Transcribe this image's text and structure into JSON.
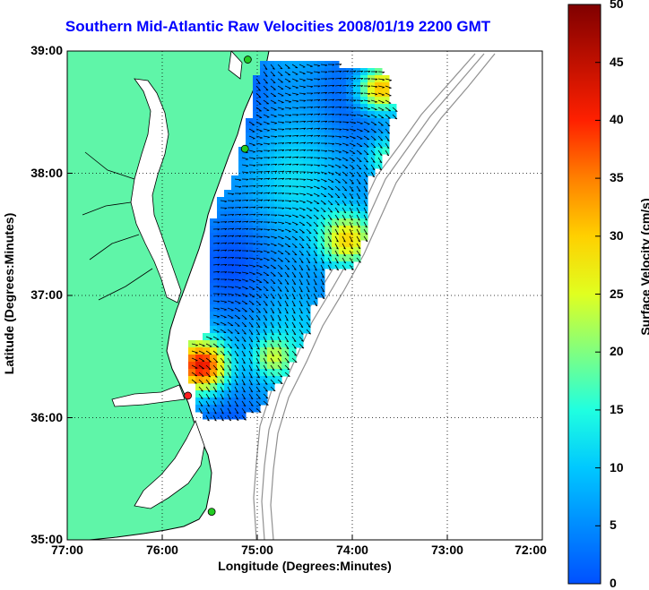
{
  "title": "Southern Mid-Atlantic Raw Velocities 2008/01/19 2200 GMT",
  "xlabel": "Longitude (Degrees:Minutes)",
  "ylabel": "Latitude (Degrees:Minutes)",
  "colorbar": {
    "label": "Surface Velocity (cm/s)",
    "ticks": [
      "0",
      "5",
      "10",
      "15",
      "20",
      "25",
      "30",
      "35",
      "40",
      "45",
      "50"
    ],
    "range": [
      0,
      50
    ]
  },
  "map": {
    "lon_range": [
      -77,
      -72
    ],
    "lat_range": [
      35,
      39
    ],
    "xticks": [
      "77:00",
      "76:00",
      "75:00",
      "74:00",
      "73:00",
      "72:00"
    ],
    "yticks": [
      "39:00",
      "38:00",
      "37:00",
      "36:00",
      "35:00"
    ],
    "grid": true,
    "land_color": "#5ff5a8",
    "ocean_color": "#ffffff",
    "coast_color": "#000000",
    "bathymetry_color": "#909090"
  },
  "stations": [
    {
      "lon": -75.1,
      "lat": 38.93,
      "color": "#22cc22"
    },
    {
      "lon": -75.13,
      "lat": 38.2,
      "color": "#22cc22"
    },
    {
      "lon": -75.73,
      "lat": 36.18,
      "color": "#ff2020"
    },
    {
      "lon": -75.48,
      "lat": 35.23,
      "color": "#22cc22"
    }
  ]
}
